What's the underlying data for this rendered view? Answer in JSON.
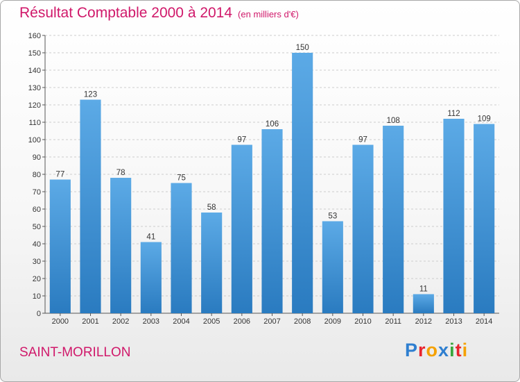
{
  "header": {
    "title": "Résultat Comptable 2000 à 2014",
    "unit": "(en milliers d'€)"
  },
  "footer": {
    "commune": "SAINT-MORILLON"
  },
  "logo": {
    "text": "Proxiti",
    "letters": [
      {
        "ch": "P",
        "color": "#2f7fd0"
      },
      {
        "ch": "r",
        "color": "#e8242e"
      },
      {
        "ch": "o",
        "color": "#f5a100"
      },
      {
        "ch": "x",
        "color": "#2f7fd0"
      },
      {
        "ch": "i",
        "color": "#39a63c"
      },
      {
        "ch": "t",
        "color": "#e8242e"
      },
      {
        "ch": "i",
        "color": "#f5a100"
      }
    ]
  },
  "colors": {
    "title": "#d0186a",
    "bar_light": "#5caae6",
    "bar_dark": "#2a7bc0",
    "grid": "#cccccc"
  },
  "chart_data": {
    "type": "bar",
    "title": "Résultat Comptable 2000 à 2014",
    "subtitle": "(en milliers d'€)",
    "xlabel": "",
    "ylabel": "",
    "categories": [
      "2000",
      "2001",
      "2002",
      "2003",
      "2004",
      "2005",
      "2006",
      "2007",
      "2008",
      "2009",
      "2010",
      "2011",
      "2012",
      "2013",
      "2014"
    ],
    "values": [
      77,
      123,
      78,
      41,
      75,
      58,
      97,
      106,
      150,
      53,
      97,
      108,
      11,
      112,
      109
    ],
    "ylim": [
      0,
      160
    ],
    "yticks": [
      0,
      10,
      20,
      30,
      40,
      50,
      60,
      70,
      80,
      90,
      100,
      110,
      120,
      130,
      140,
      150,
      160
    ],
    "grid": true,
    "legend": "none"
  }
}
